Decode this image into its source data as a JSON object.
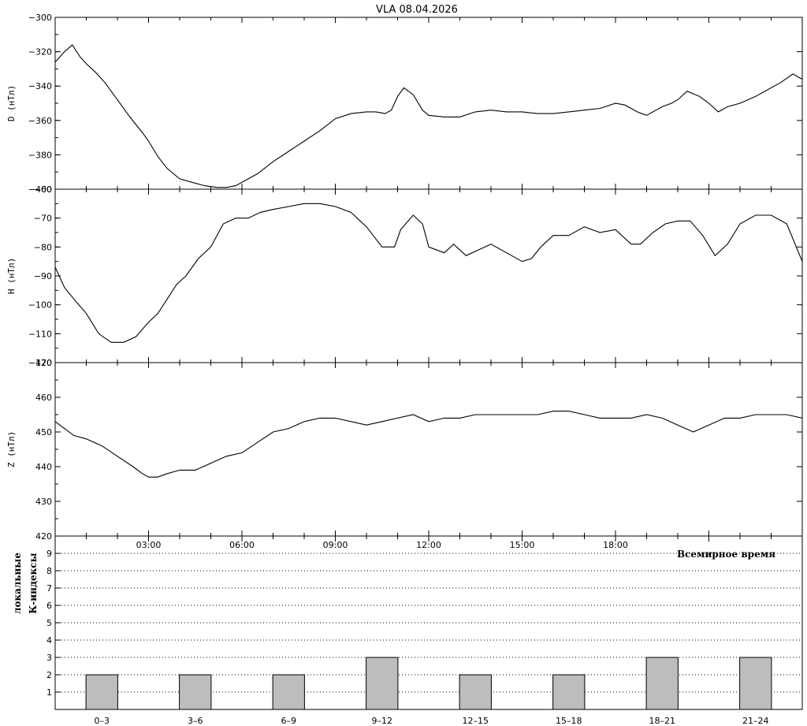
{
  "title": "VLA   08.04.2026",
  "x_axis_label": "Всемирное время",
  "x_time_ticks": [
    "03:00",
    "06:00",
    "09:00",
    "12:00",
    "15:00",
    "18:00"
  ],
  "chart_data": [
    {
      "type": "line",
      "ylabel": "D (нТл)",
      "ylim": [
        -400,
        -300
      ],
      "yticks": [
        -400,
        -380,
        -360,
        -340,
        -320,
        -300
      ],
      "x_hours": [
        0.0,
        0.3,
        0.55,
        0.8,
        1.0,
        1.3,
        1.6,
        2.0,
        2.4,
        2.8,
        3.0,
        3.3,
        3.6,
        4.0,
        4.4,
        4.8,
        5.2,
        5.5,
        5.8,
        6.1,
        6.5,
        7.0,
        7.5,
        8.0,
        8.5,
        9.0,
        9.5,
        10.0,
        10.3,
        10.6,
        10.8,
        11.0,
        11.2,
        11.5,
        11.8,
        12.0,
        12.5,
        13.0,
        13.5,
        14.0,
        14.5,
        15.0,
        15.5,
        16.0,
        16.5,
        17.0,
        17.5,
        18.0,
        18.3,
        18.7,
        19.0,
        19.5,
        19.8,
        20.0,
        20.3,
        20.7,
        21.0,
        21.3,
        21.6,
        22.0,
        22.5,
        23.0,
        23.3,
        23.7,
        24.0
      ],
      "values": [
        -326,
        -320,
        -316,
        -323,
        -327,
        -332,
        -338,
        -348,
        -358,
        -367,
        -372,
        -381,
        -388,
        -394,
        -396,
        -398,
        -399,
        -399,
        -398,
        -395,
        -391,
        -384,
        -378,
        -372,
        -366,
        -359,
        -356,
        -355,
        -355,
        -356,
        -354,
        -346,
        -341,
        -345,
        -354,
        -357,
        -358,
        -358,
        -355,
        -354,
        -355,
        -355,
        -356,
        -356,
        -355,
        -354,
        -353,
        -350,
        -351,
        -355,
        -357,
        -352,
        -350,
        -348,
        -343,
        -346,
        -350,
        -355,
        -352,
        -350,
        -346,
        -341,
        -338,
        -333,
        -336
      ]
    },
    {
      "type": "line",
      "ylabel": "H (нТл)",
      "ylim": [
        -120,
        -60
      ],
      "yticks": [
        -120,
        -110,
        -100,
        -90,
        -80,
        -70,
        -60
      ],
      "x_hours": [
        0.0,
        0.3,
        0.6,
        1.0,
        1.4,
        1.8,
        2.2,
        2.6,
        3.0,
        3.3,
        3.6,
        3.9,
        4.2,
        4.6,
        5.0,
        5.4,
        5.8,
        6.2,
        6.6,
        7.0,
        7.5,
        8.0,
        8.5,
        9.0,
        9.5,
        10.0,
        10.5,
        10.9,
        11.1,
        11.5,
        11.8,
        12.0,
        12.5,
        12.8,
        13.2,
        13.6,
        14.0,
        14.5,
        15.0,
        15.3,
        15.6,
        16.0,
        16.5,
        17.0,
        17.5,
        18.0,
        18.5,
        18.8,
        19.2,
        19.6,
        20.0,
        20.4,
        20.8,
        21.2,
        21.6,
        22.0,
        22.5,
        23.0,
        23.5,
        24.0
      ],
      "values": [
        -87,
        -94,
        -98,
        -103,
        -110,
        -113,
        -113,
        -111,
        -106,
        -103,
        -98,
        -93,
        -90,
        -84,
        -80,
        -72,
        -70,
        -70,
        -68,
        -67,
        -66,
        -65,
        -65,
        -66,
        -68,
        -73,
        -80,
        -80,
        -74,
        -69,
        -72,
        -80,
        -82,
        -79,
        -83,
        -81,
        -79,
        -82,
        -85,
        -84,
        -80,
        -76,
        -76,
        -73,
        -75,
        -74,
        -79,
        -79,
        -75,
        -72,
        -71,
        -71,
        -76,
        -83,
        -79,
        -72,
        -69,
        -69,
        -72,
        -85
      ]
    },
    {
      "type": "line",
      "ylabel": "Z (нТл)",
      "ylim": [
        420,
        470
      ],
      "yticks": [
        420,
        430,
        440,
        450,
        460,
        470
      ],
      "x_hours": [
        0.0,
        0.3,
        0.6,
        1.0,
        1.5,
        2.0,
        2.5,
        2.8,
        3.0,
        3.3,
        3.6,
        4.0,
        4.5,
        5.0,
        5.5,
        6.0,
        6.5,
        7.0,
        7.5,
        8.0,
        8.5,
        9.0,
        9.5,
        10.0,
        10.5,
        11.0,
        11.5,
        12.0,
        12.5,
        13.0,
        13.5,
        14.0,
        14.5,
        15.0,
        15.5,
        16.0,
        16.5,
        17.0,
        17.5,
        18.0,
        18.5,
        19.0,
        19.5,
        20.0,
        20.5,
        21.0,
        21.5,
        22.0,
        22.5,
        23.0,
        23.5,
        24.0
      ],
      "values": [
        453,
        451,
        449,
        448,
        446,
        443,
        440,
        438,
        437,
        437,
        438,
        439,
        439,
        441,
        443,
        444,
        447,
        450,
        451,
        453,
        454,
        454,
        453,
        452,
        453,
        454,
        455,
        453,
        454,
        454,
        455,
        455,
        455,
        455,
        455,
        456,
        456,
        455,
        454,
        454,
        454,
        455,
        454,
        452,
        450,
        452,
        454,
        454,
        455,
        455,
        455,
        454
      ]
    },
    {
      "type": "bar",
      "ylabel": "локальные К-индексы",
      "ylim": [
        0,
        10
      ],
      "yticks": [
        1,
        2,
        3,
        4,
        5,
        6,
        7,
        8,
        9
      ],
      "categories": [
        "0–3",
        "3–6",
        "6–9",
        "9–12",
        "12–15",
        "15–18",
        "18–21",
        "21–24"
      ],
      "values": [
        2,
        2,
        2,
        3,
        2,
        2,
        3,
        3
      ]
    }
  ]
}
